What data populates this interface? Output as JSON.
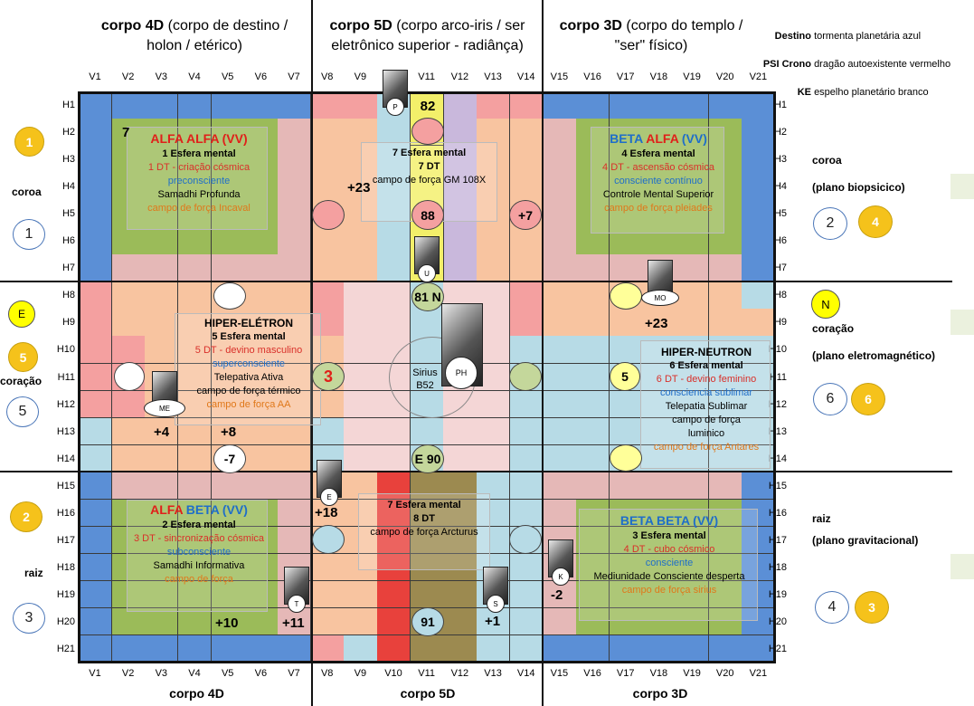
{
  "header": {
    "left_bold": "corpo 4D",
    "left_rest": " (corpo de destino / holon / etérico)",
    "mid_bold": "corpo 5D",
    "mid_rest": " (corpo arco-iris / ser eletrônico superior - radiânça)",
    "right_bold": "corpo 3D",
    "right_rest": " (corpo do templo / \"ser\" físico)"
  },
  "kin": [
    {
      "label": "Destino",
      "value": "tormenta planetária azul"
    },
    {
      "label": "PSI Crono",
      "value": "dragão autoexistente vermelho"
    },
    {
      "label": "KE",
      "value": "espelho planetário branco"
    }
  ],
  "columns": [
    "V1",
    "V2",
    "V3",
    "V4",
    "V5",
    "V6",
    "V7",
    "V8",
    "V9",
    "V10",
    "V11",
    "V12",
    "V13",
    "V14",
    "V15",
    "V16",
    "V17",
    "V18",
    "V19",
    "V20",
    "V21"
  ],
  "rows": [
    "H1",
    "H2",
    "H3",
    "H4",
    "H5",
    "H6",
    "H7",
    "H8",
    "H9",
    "H10",
    "H11",
    "H12",
    "H13",
    "H14",
    "H15",
    "H16",
    "H17",
    "H18",
    "H19",
    "H20",
    "H21"
  ],
  "footer": [
    "corpo 4D",
    "corpo 5D",
    "corpo 3D"
  ],
  "left_side": {
    "coroa": "coroa",
    "coracao": "coração",
    "raiz": "raiz",
    "badges": [
      "1",
      "1",
      "E",
      "5",
      "5",
      "2",
      "3"
    ]
  },
  "right_side": {
    "coroa": "coroa",
    "coroa_plane": "(plano biopsicico)",
    "coracao": "coração",
    "coracao_plane": "(plano eletromagnético)",
    "raiz": "raiz",
    "raiz_plane": "(plano gravitacional)",
    "badges": [
      "2",
      "4",
      "N",
      "6",
      "6",
      "4",
      "3"
    ]
  },
  "spheres": {
    "alfa_alfa": {
      "t1": "ALFA",
      "t2": "ALFA",
      "t3": "(VV)",
      "l1": "1 Esfera mental",
      "l2": "1 DT - criação cósmica",
      "l3": "preconsciente",
      "l4": "Samadhi Profunda",
      "l5": "campo de força Incaval"
    },
    "beta_alfa": {
      "t1": "BETA",
      "t2": "ALFA",
      "t3": "(VV)",
      "l1": "4 Esfera mental",
      "l2": "4 DT - ascensão cósmica",
      "l3": "consciente contínuo",
      "l4": "Controle Mental Superior",
      "l5": "campo de força pleiades"
    },
    "hiper_eletron": {
      "t": "HIPER-ELÉTRON",
      "l1": "5 Esfera mental",
      "l2": "5 DT - devino masculino",
      "l3": "superconsciente",
      "l4": "Telepativa Ativa",
      "l5": "campo de força térmico",
      "l6": "campo de força AA"
    },
    "hiper_neutron": {
      "t": "HIPER-NEUTRON",
      "l1": "6 Esfera mental",
      "l2": "6 DT - devino feminino",
      "l3": "consciencia sublimar",
      "l4": "Telepatia Sublimar",
      "l5": "campo de força",
      "l6": "luminico",
      "l7": "campo de força Antares"
    },
    "alfa_beta": {
      "t1": "ALFA",
      "t2": "BETA",
      "t3": "(VV)",
      "l1": "2 Esfera mental",
      "l2": "3 DT - sincronização cósmica",
      "l3": "subconsciente",
      "l4": "Samadhi Informativa",
      "l5": "campo de força"
    },
    "beta_beta": {
      "t1": "BETA",
      "t2": "BETA",
      "t3": "(VV)",
      "l1": "3 Esfera mental",
      "l2": "4 DT - cubo cósmico",
      "l3": "consciente",
      "l4": "Mediunidade Consciente desperta",
      "l5": "campo de força sirius"
    },
    "esfera7_top": {
      "l1": "7 Esfera mental",
      "l2": "7 DT",
      "l3": "campo de força GM 108X"
    },
    "esfera7_bot": {
      "l1": "7 Esfera mental",
      "l2": "8 DT",
      "l3": "campo de força Arcturus"
    }
  },
  "numbers": [
    "82",
    "88",
    "81 N",
    "E 90",
    "91",
    "+23",
    "+7",
    "+23",
    "+4",
    "+8",
    "-7",
    "3",
    "5",
    "+18",
    "+10",
    "+11",
    "+1",
    "-2",
    "7"
  ],
  "sirius": {
    "a": "Sirius",
    "b": "B52"
  },
  "crystals": [
    "P",
    "U",
    "PH",
    "MO",
    "ME",
    "E",
    "T",
    "S",
    "K"
  ],
  "colors": {
    "blue": "#5b8fd6",
    "green": "#9bbb59",
    "salmon": "#f8c4a0",
    "pink": "#f4a0a0",
    "light_blue": "#b7dbe6",
    "red": "#e8413c",
    "yellow": "#f3ef6a",
    "lavender": "#c9b8dc",
    "olive": "#9c8a50",
    "light_pink": "#f4d6d6",
    "brown_pink": "#e5b8b7"
  }
}
